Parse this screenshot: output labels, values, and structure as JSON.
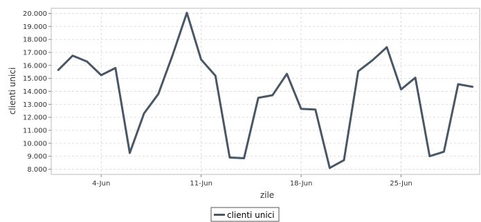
{
  "chart_data": {
    "type": "line",
    "xlabel": "zile",
    "ylabel": "clienti unici",
    "ylim": [
      7600,
      20400
    ],
    "yticks": [
      8000,
      9000,
      10000,
      11000,
      12000,
      13000,
      14000,
      15000,
      16000,
      17000,
      18000,
      19000,
      20000
    ],
    "ytick_labels": [
      "8.000",
      "9.000",
      "10.000",
      "11.000",
      "12.000",
      "13.000",
      "14.000",
      "15.000",
      "16.000",
      "17.000",
      "18.000",
      "19.000",
      "20.000"
    ],
    "xticks": [
      "2015-06-04",
      "2015-06-11",
      "2015-06-18",
      "2015-06-25"
    ],
    "xtick_labels": [
      "4-Jun",
      "11-Jun",
      "18-Jun",
      "25-Jun"
    ],
    "xlim": [
      "2015-05-31T12:00",
      "2015-06-30T12:00"
    ],
    "grid": true,
    "legend": "bottom-center",
    "series": [
      {
        "name": "clienti unici",
        "color": "#475766",
        "x": [
          "2015-06-01",
          "2015-06-02",
          "2015-06-03",
          "2015-06-04",
          "2015-06-05",
          "2015-06-06",
          "2015-06-07",
          "2015-06-08",
          "2015-06-09",
          "2015-06-10",
          "2015-06-11",
          "2015-06-12",
          "2015-06-13",
          "2015-06-14",
          "2015-06-15",
          "2015-06-16",
          "2015-06-17",
          "2015-06-18",
          "2015-06-19",
          "2015-06-20",
          "2015-06-21",
          "2015-06-22",
          "2015-06-23",
          "2015-06-24",
          "2015-06-25",
          "2015-06-26",
          "2015-06-27",
          "2015-06-28",
          "2015-06-29",
          "2015-06-30"
        ],
        "values": [
          15650,
          16750,
          16300,
          15250,
          15800,
          9250,
          12300,
          13800,
          16800,
          20050,
          16450,
          15200,
          8900,
          8850,
          13500,
          13700,
          15350,
          12650,
          12600,
          8100,
          8700,
          15550,
          16400,
          17400,
          14150,
          15050,
          9000,
          9350,
          14550,
          14350
        ]
      }
    ]
  }
}
